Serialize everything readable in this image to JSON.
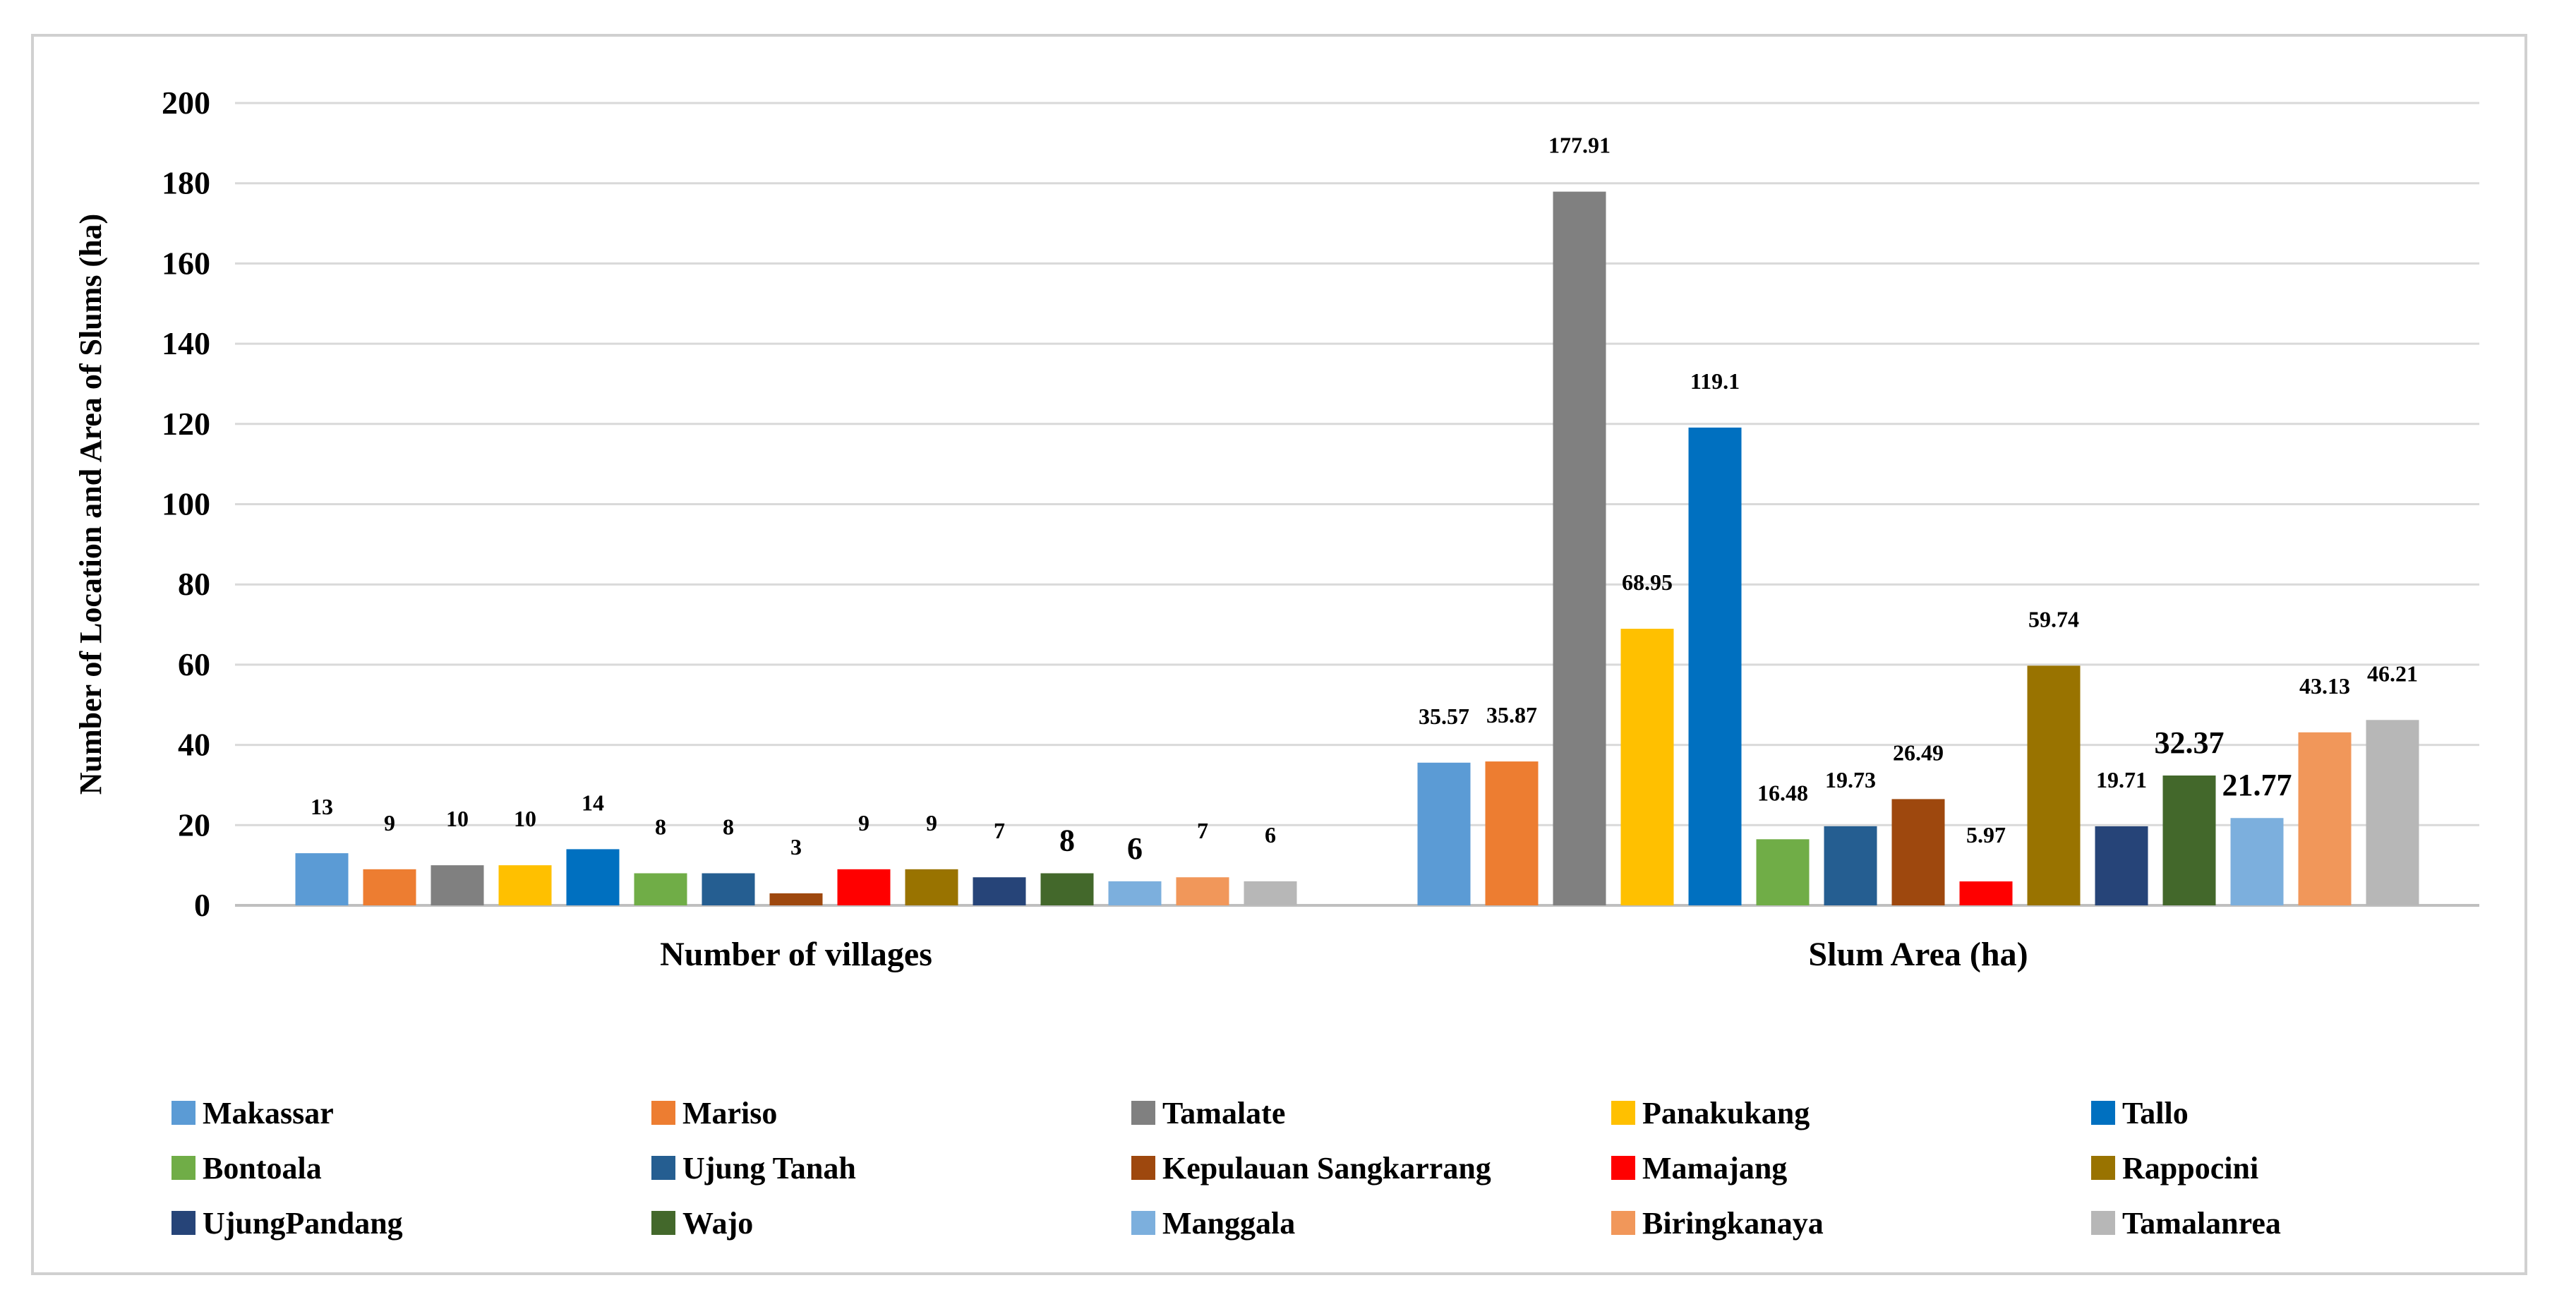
{
  "chart_data": {
    "type": "bar",
    "title": "",
    "xlabel": "",
    "ylabel": "Number of Location and Area of Slums (ha)",
    "ylim": [
      0,
      200
    ],
    "yticks": [
      0,
      20,
      40,
      60,
      80,
      100,
      120,
      140,
      160,
      180,
      200
    ],
    "gridlines": true,
    "legend_position": "bottom",
    "categories": [
      "Number of villages",
      "Slum Area (ha)"
    ],
    "series": [
      {
        "name": "Makassar",
        "color": "#5b9bd5",
        "values": [
          13,
          35.57
        ],
        "labels": [
          "13",
          "35.57"
        ]
      },
      {
        "name": "Mariso",
        "color": "#ed7d31",
        "values": [
          9,
          35.87
        ],
        "labels": [
          "9",
          "35.87"
        ]
      },
      {
        "name": "Tamalate",
        "color": "#808080",
        "values": [
          10,
          177.91
        ],
        "labels": [
          "10",
          "177.91"
        ]
      },
      {
        "name": "Panakukang",
        "color": "#ffc000",
        "values": [
          10,
          68.95
        ],
        "labels": [
          "10",
          "68.95"
        ]
      },
      {
        "name": "Tallo",
        "color": "#0070c0",
        "values": [
          14,
          119.1
        ],
        "labels": [
          "14",
          "119.1"
        ]
      },
      {
        "name": "Bontoala",
        "color": "#70ad47",
        "values": [
          8,
          16.48
        ],
        "labels": [
          "8",
          "16.48"
        ]
      },
      {
        "name": "Ujung Tanah",
        "color": "#255e91",
        "values": [
          8,
          19.73
        ],
        "labels": [
          "8",
          "19.73"
        ]
      },
      {
        "name": "Kepulauan Sangkarrang",
        "color": "#9e480e",
        "values": [
          3,
          26.49
        ],
        "labels": [
          "3",
          "26.49"
        ]
      },
      {
        "name": "Mamajang",
        "color": "#ff0000",
        "values": [
          9,
          5.97
        ],
        "labels": [
          "9",
          "5.97"
        ]
      },
      {
        "name": "Rappocini",
        "color": "#997300",
        "values": [
          9,
          59.74
        ],
        "labels": [
          "9",
          "59.74"
        ]
      },
      {
        "name": "UjungPandang",
        "color": "#264478",
        "values": [
          7,
          19.71
        ],
        "labels": [
          "7",
          "19.71"
        ]
      },
      {
        "name": "Wajo",
        "color": "#43682b",
        "values": [
          8,
          32.37
        ],
        "labels": [
          "8",
          "32.37"
        ],
        "big_labels": [
          true,
          true
        ]
      },
      {
        "name": "Manggala",
        "color": "#7cafdd",
        "values": [
          6,
          21.77
        ],
        "labels": [
          "6",
          "21.77"
        ],
        "big_labels": [
          true,
          true
        ]
      },
      {
        "name": "Biringkanaya",
        "color": "#f1975a",
        "values": [
          7,
          43.13
        ],
        "labels": [
          "7",
          "43.13"
        ]
      },
      {
        "name": "Tamalanrea",
        "color": "#b7b7b7",
        "values": [
          6,
          46.21
        ],
        "labels": [
          "6",
          "46.21"
        ]
      }
    ]
  }
}
